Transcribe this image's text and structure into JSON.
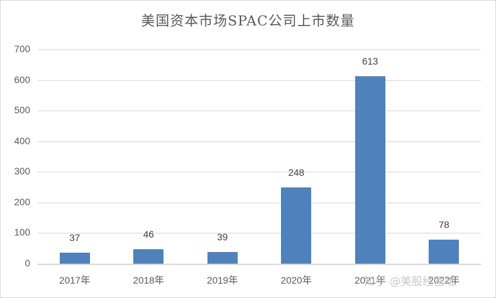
{
  "chart_data": {
    "type": "bar",
    "title": "美国资本市场SPAC公司上市数量",
    "categories": [
      "2017年",
      "2018年",
      "2019年",
      "2020年",
      "2021年",
      "2022年"
    ],
    "values": [
      37,
      46,
      39,
      248,
      613,
      78
    ],
    "xlabel": "",
    "ylabel": "",
    "ylim": [
      0,
      700
    ],
    "yticks": [
      0,
      100,
      200,
      300,
      400,
      500,
      600,
      700
    ],
    "grid": true,
    "legend": null,
    "bar_color": "#4f81bd"
  },
  "watermark": "知乎 @美股经营哦"
}
